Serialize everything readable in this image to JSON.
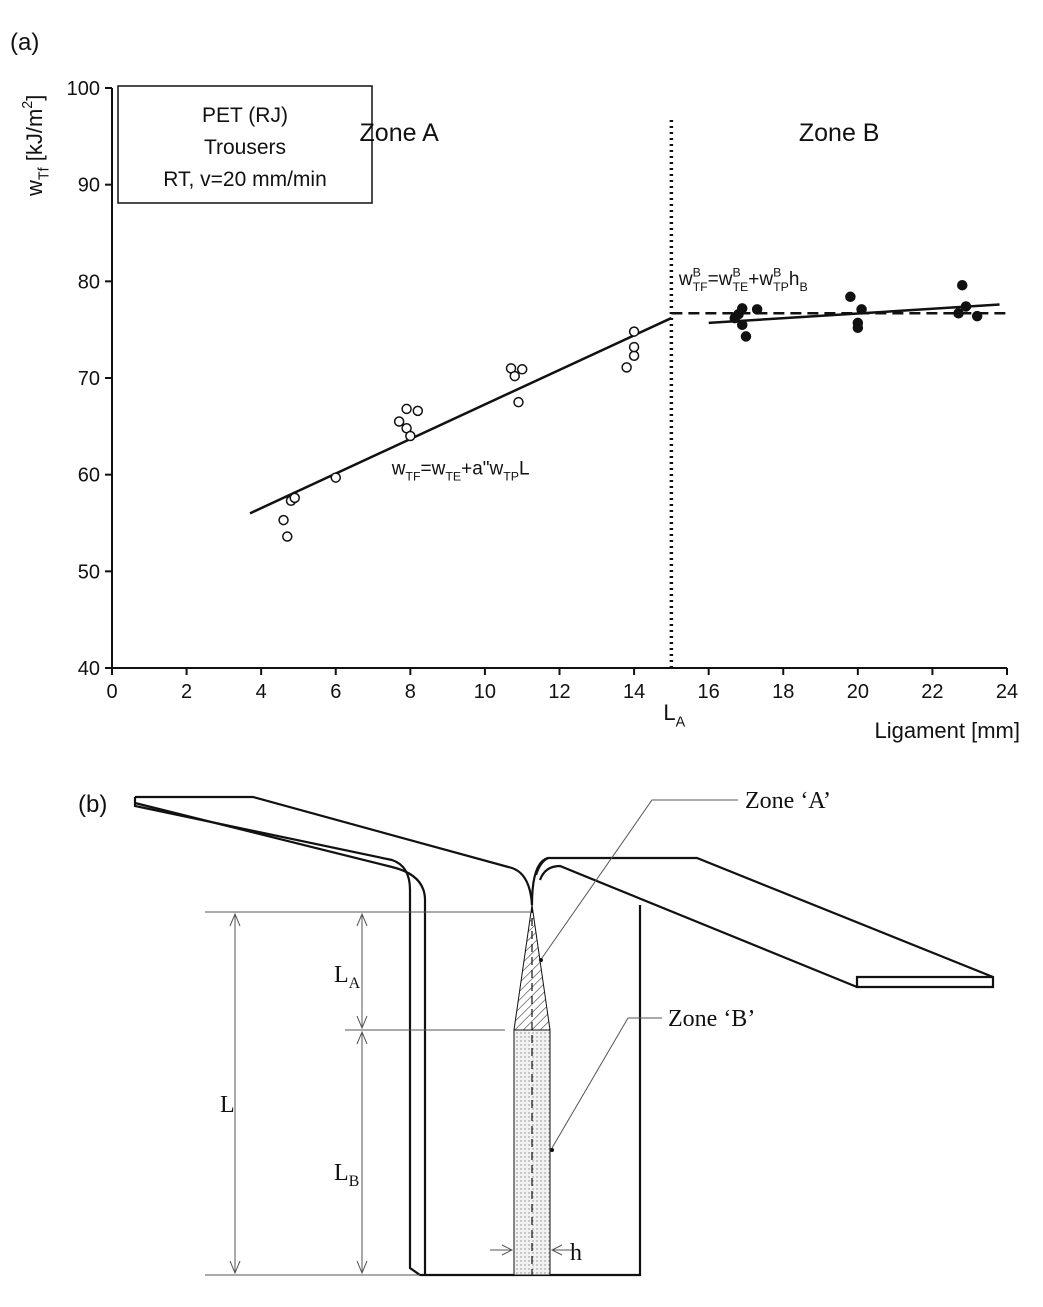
{
  "chart_data": {
    "type": "scatter",
    "panel_label": "(a)",
    "ylabel": [
      "w",
      "Tf",
      " [kJ/m",
      "2",
      "]"
    ],
    "xlabel": "Ligament [mm]",
    "xlim": [
      0,
      24
    ],
    "xticks": [
      0,
      2,
      4,
      6,
      8,
      10,
      12,
      14,
      16,
      18,
      20,
      22,
      24
    ],
    "ylim": [
      40,
      100
    ],
    "yticks": [
      40,
      50,
      60,
      70,
      80,
      90,
      100
    ],
    "info_box": [
      "PET (RJ)",
      "Trousers",
      "RT, v=20 mm/min"
    ],
    "zone_labels": [
      {
        "text": "Zone A",
        "x": 7.7,
        "y": 94.5
      },
      {
        "text": "Zone B",
        "x": 19.5,
        "y": 94.5
      }
    ],
    "vline": {
      "x": 15,
      "y": [
        40,
        96.9
      ],
      "label": [
        "L",
        "A"
      ]
    },
    "equations": [
      {
        "segments": [
          "w",
          "TF",
          "=w",
          "TE",
          "+a\"w",
          "TP",
          "L"
        ],
        "x": 7.5,
        "y": 60
      },
      {
        "segments": [
          "w",
          "B",
          "TF",
          "=w",
          "B",
          "TE",
          "+w",
          "B",
          "TP",
          "h",
          "B"
        ],
        "x": 15.2,
        "y": 79.6
      }
    ],
    "series": [
      {
        "marker": "open",
        "color": "#111111",
        "x": [
          4.6,
          4.7,
          4.8,
          4.9,
          6.0,
          7.7,
          7.9,
          7.9,
          8.0,
          8.2,
          10.7,
          10.8,
          10.9,
          11.0,
          13.8,
          14.0,
          14.0,
          14.0
        ],
        "values": [
          55.3,
          53.6,
          57.3,
          57.6,
          59.7,
          65.5,
          66.8,
          64.8,
          64.0,
          66.6,
          71.0,
          70.2,
          67.5,
          70.9,
          71.1,
          72.3,
          73.2,
          74.8
        ]
      },
      {
        "marker": "filled",
        "color": "#111111",
        "x": [
          16.7,
          16.8,
          16.9,
          16.9,
          17.0,
          17.3,
          19.8,
          20.0,
          20.0,
          20.1,
          22.7,
          22.8,
          22.9,
          23.2
        ],
        "values": [
          76.2,
          76.6,
          75.5,
          77.2,
          74.3,
          77.1,
          78.4,
          75.7,
          75.2,
          77.1,
          76.7,
          79.6,
          77.4,
          76.4
        ]
      }
    ],
    "lines": [
      {
        "x": [
          3.7,
          15
        ],
        "values": [
          56,
          76.2
        ],
        "dashed": false
      },
      {
        "x": [
          16,
          23.8
        ],
        "values": [
          75.7,
          77.6
        ],
        "dashed": false
      },
      {
        "x": [
          15,
          24
        ],
        "values": [
          76.7,
          76.7
        ],
        "dashed": true
      }
    ]
  },
  "diagram": {
    "panel_label": "(b)",
    "zone_a": "Zone ‘A’",
    "zone_b": "Zone ‘B’",
    "l_a": [
      "L",
      "A"
    ],
    "l": "L",
    "l_b": [
      "L",
      "B"
    ],
    "h": "h"
  }
}
